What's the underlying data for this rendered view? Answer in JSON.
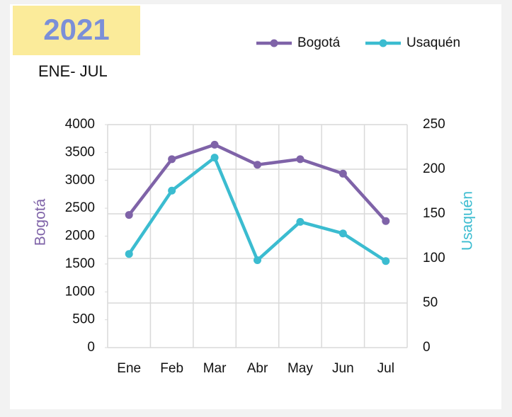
{
  "chart_data": {
    "type": "line",
    "title": "2021",
    "subtitle": "ENE- JUL",
    "categories": [
      "Ene",
      "Feb",
      "Mar",
      "Abr",
      "May",
      "Jun",
      "Jul"
    ],
    "series": [
      {
        "name": "Bogotá",
        "color": "#7f63a8",
        "values": [
          2380,
          3380,
          3640,
          3280,
          3380,
          3120,
          2270
        ]
      },
      {
        "name": "Usaquén",
        "color": "#3bbcd0",
        "axis": "y2",
        "values": [
          105,
          176,
          213,
          98,
          141,
          128,
          97
        ]
      }
    ],
    "ylabel": "Bogotá",
    "y2label": "Usaquén",
    "ylim": [
      0,
      4000
    ],
    "yticks": [
      0,
      500,
      1000,
      1500,
      2000,
      2500,
      3000,
      3500,
      4000
    ],
    "y2lim": [
      0,
      250
    ],
    "y2ticks": [
      0,
      50,
      100,
      150,
      200,
      250
    ],
    "grid": true,
    "legend": "top-right"
  }
}
